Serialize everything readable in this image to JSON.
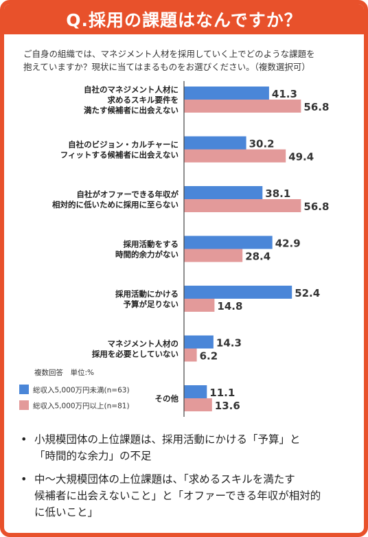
{
  "header": {
    "title": "Q.採用の課題はなんですか？"
  },
  "question": {
    "line1": "ご自身の組織では、マネジメント人材を採用していく上でどのような課題を",
    "line2": "抱えていますか？現状に当てはまるものをお選びください。（複数選択可）"
  },
  "legend": {
    "title": "複数回答　単位:%",
    "items": [
      "総収入5,000万円未満(n=63)",
      "総収入5,000万円以上(n=81)"
    ]
  },
  "colors": {
    "accent": "#e8512b",
    "series_small": "#4a86d8",
    "series_large": "#e39a9a",
    "axis": "#444444"
  },
  "chart_data": {
    "type": "bar",
    "orientation": "horizontal",
    "unit": "%",
    "categories": [
      [
        "自社のマネジメント人材に",
        "求めるスキル要件を",
        "満たす候補者に出会えない"
      ],
      [
        "自社のビジョン・カルチャーに",
        "フィットする候補者に出会えない"
      ],
      [
        "自社がオファーできる年収が",
        "相対的に低いために採用に至らない"
      ],
      [
        "採用活動をする",
        "時間的余力がない"
      ],
      [
        "採用活動にかける",
        "予算が足りない"
      ],
      [
        "マネジメント人材の",
        "採用を必要としていない"
      ],
      [
        "その他"
      ]
    ],
    "series": [
      {
        "name": "総収入5,000万円未満(n=63)",
        "values": [
          41.3,
          30.2,
          38.1,
          42.9,
          52.4,
          14.3,
          11.1
        ]
      },
      {
        "name": "総収入5,000万円以上(n=81)",
        "values": [
          56.8,
          49.4,
          56.8,
          28.4,
          14.8,
          6.2,
          13.6
        ]
      }
    ],
    "xlim": [
      0,
      100
    ],
    "legend_position": "bottom-left"
  },
  "bullets": [
    [
      "小規模団体の上位課題は、採用活動にかける「予算」と",
      "「時間的な余力」の不足"
    ],
    [
      "中〜大規模団体の上位課題は、「求めるスキルを満たす",
      "候補者に出会えないこと」と「オファーできる年収が相対的",
      "に低いこと」"
    ]
  ]
}
